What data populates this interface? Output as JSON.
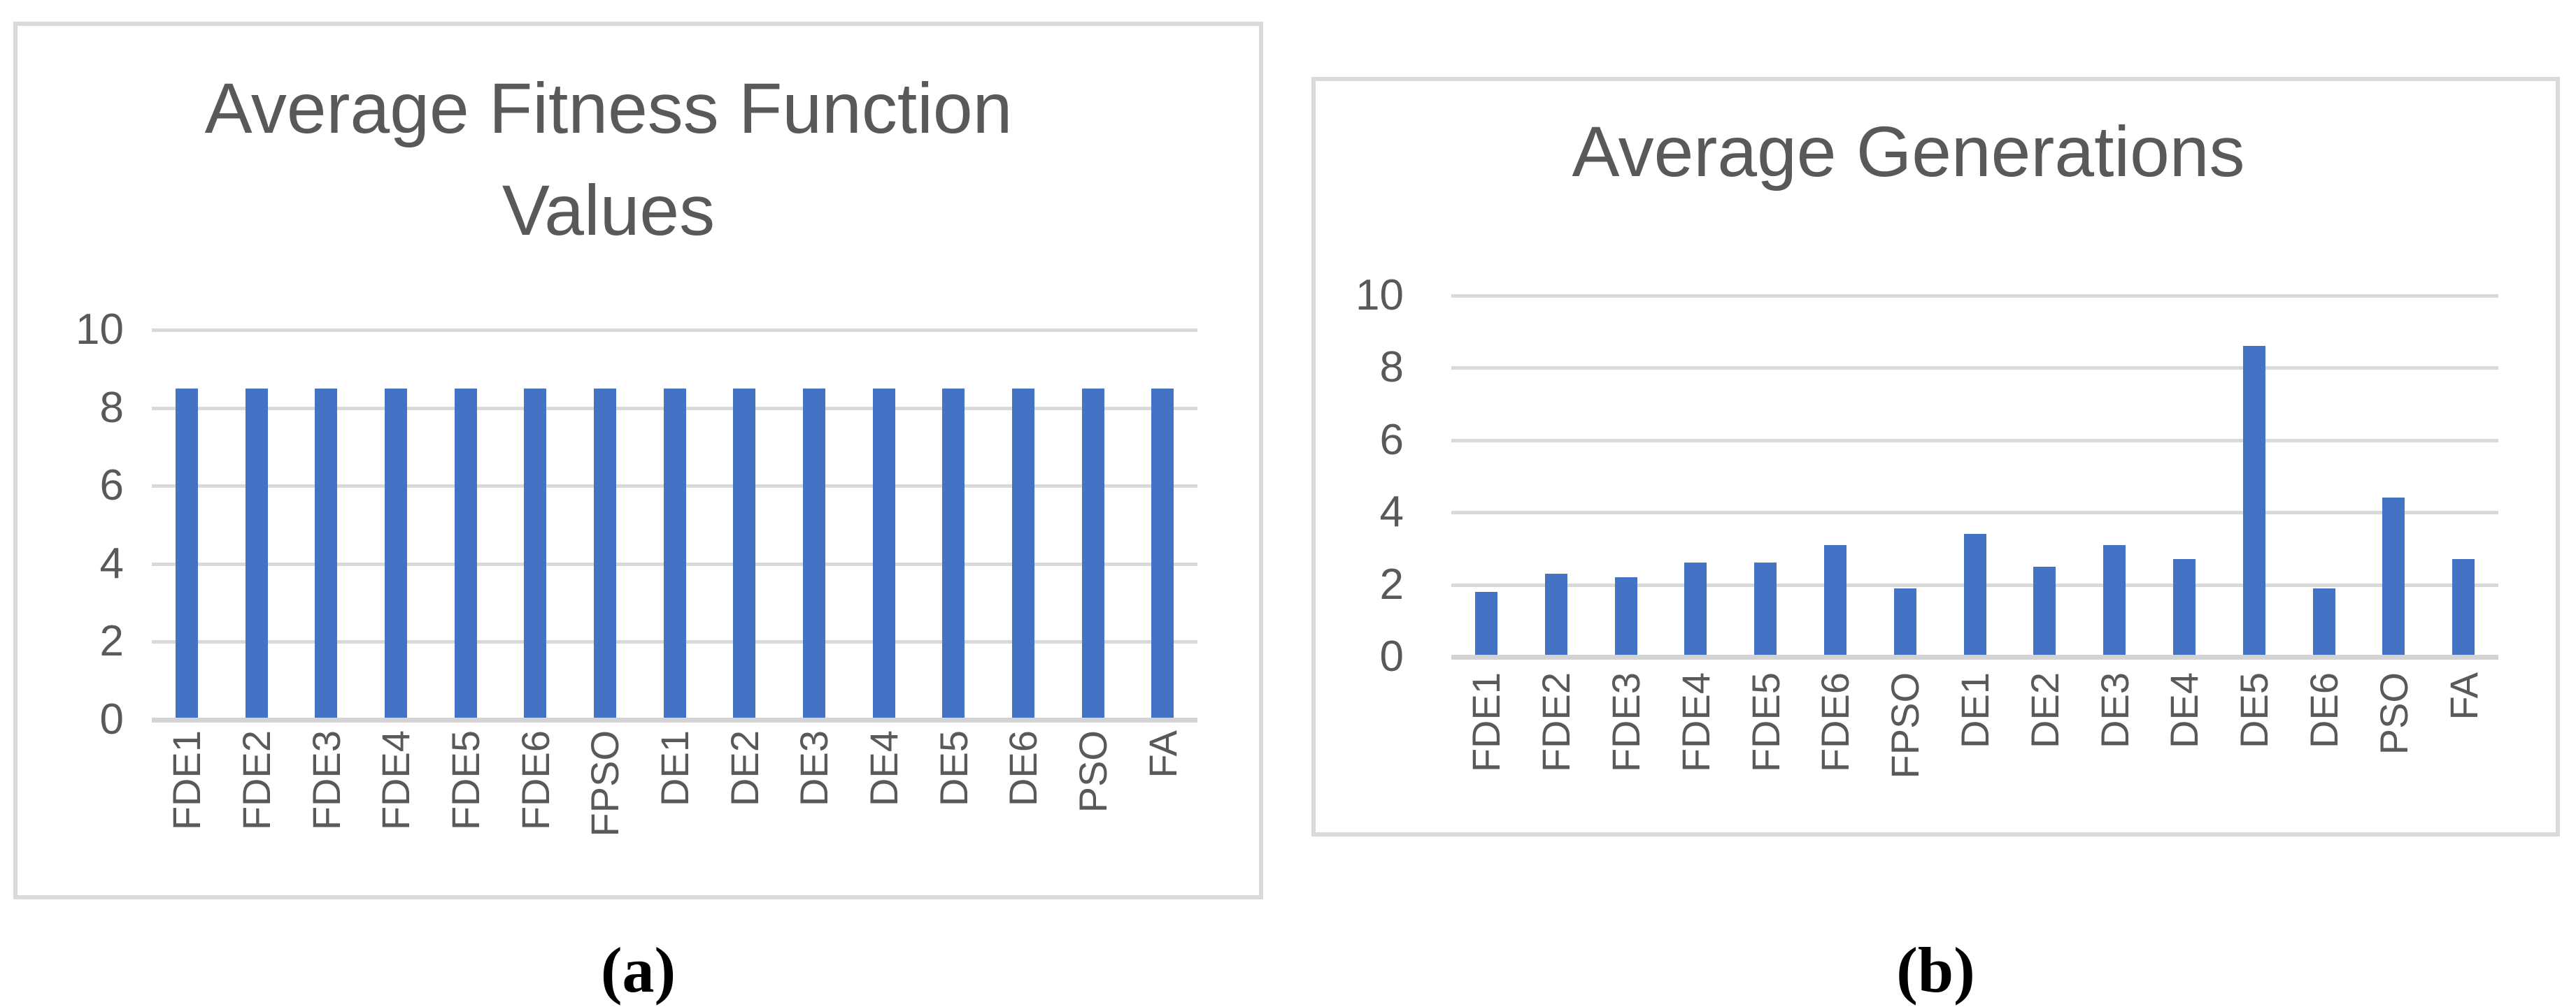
{
  "figure": {
    "caption_a": "(a)",
    "caption_b": "(b)"
  },
  "colors": {
    "bar": "#4472C4",
    "gridline": "#D9D9D9",
    "axis_line": "#D3D3D3",
    "text": "#595959",
    "panel_border": "#DADADA"
  },
  "chart_data": [
    {
      "id": "avg-fitness",
      "type": "bar",
      "title": "Average Fitness Function Values",
      "title_lines": [
        "Average Fitness Function",
        "Values"
      ],
      "xlabel": "",
      "ylabel": "",
      "categories": [
        "FDE1",
        "FDE2",
        "FDE3",
        "FDE4",
        "FDE5",
        "FDE6",
        "FPSO",
        "DE1",
        "DE2",
        "DE3",
        "DE4",
        "DE5",
        "DE6",
        "PSO",
        "FA"
      ],
      "values": [
        8.5,
        8.5,
        8.5,
        8.5,
        8.5,
        8.5,
        8.5,
        8.5,
        8.5,
        8.5,
        8.5,
        8.5,
        8.5,
        8.5,
        8.5
      ],
      "ylim": [
        0,
        10
      ],
      "ytick_step": 2,
      "yticks": [
        0,
        2,
        4,
        6,
        8,
        10
      ],
      "grid": true,
      "legend": false
    },
    {
      "id": "avg-generations",
      "type": "bar",
      "title": "Average Generations",
      "title_lines": [
        "Average Generations"
      ],
      "xlabel": "",
      "ylabel": "",
      "categories": [
        "FDE1",
        "FDE2",
        "FDE3",
        "FDE4",
        "FDE5",
        "FDE6",
        "FPSO",
        "DE1",
        "DE2",
        "DE3",
        "DE4",
        "DE5",
        "DE6",
        "PSO",
        "FA"
      ],
      "values": [
        1.8,
        2.3,
        2.2,
        2.6,
        2.6,
        3.1,
        1.9,
        3.4,
        2.5,
        3.1,
        2.7,
        8.6,
        1.9,
        4.4,
        2.7
      ],
      "ylim": [
        0,
        10
      ],
      "ytick_step": 2,
      "yticks": [
        0,
        2,
        4,
        6,
        8,
        10
      ],
      "grid": true,
      "legend": false
    }
  ]
}
